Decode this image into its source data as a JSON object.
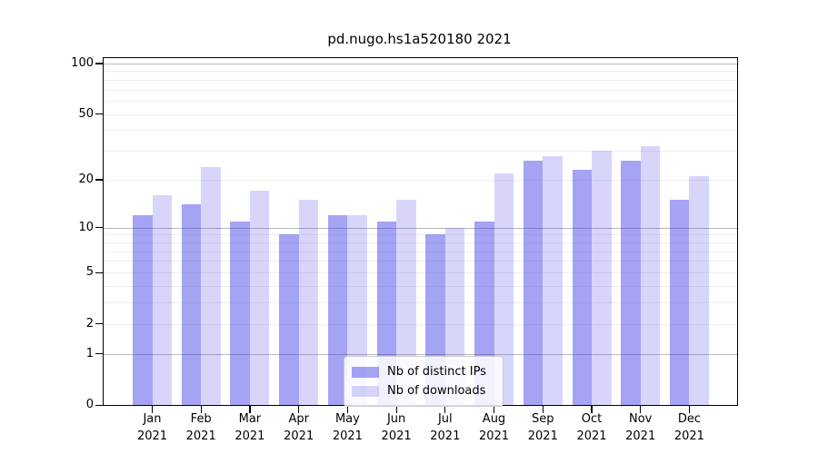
{
  "chart_data": {
    "type": "bar",
    "title": "pd.nugo.hs1a520180 2021",
    "categories": [
      "Jan 2021",
      "Feb 2021",
      "Mar 2021",
      "Apr 2021",
      "May 2021",
      "Jun 2021",
      "Jul 2021",
      "Aug 2021",
      "Sep 2021",
      "Oct 2021",
      "Nov 2021",
      "Dec 2021"
    ],
    "category_months": [
      "Jan",
      "Feb",
      "Mar",
      "Apr",
      "May",
      "Jun",
      "Jul",
      "Aug",
      "Sep",
      "Oct",
      "Nov",
      "Dec"
    ],
    "category_year": "2021",
    "series": [
      {
        "name": "Nb of distinct IPs",
        "values": [
          12,
          14,
          11,
          9,
          12,
          11,
          9,
          11,
          26,
          23,
          26,
          15
        ]
      },
      {
        "name": "Nb of downloads",
        "values": [
          16,
          24,
          17,
          15,
          12,
          15,
          10,
          22,
          28,
          30,
          32,
          21
        ]
      }
    ],
    "xlabel": "",
    "ylabel": "",
    "yscale": "log1p",
    "ylim": [
      0,
      108
    ],
    "yticks_labeled": [
      0,
      1,
      2,
      5,
      10,
      20,
      50,
      100
    ],
    "gridline_values_minor": [
      2,
      3,
      4,
      5,
      6,
      7,
      8,
      9,
      20,
      30,
      40,
      50,
      60,
      70,
      80,
      90
    ],
    "gridline_values_major": [
      1,
      10,
      100
    ],
    "grid": "horizontal",
    "legend_position": "lower-center-inside"
  },
  "colors": {
    "bar_ips": "rgba(55,51,231,0.45)",
    "bar_downloads": "rgba(55,51,231,0.20)",
    "bar_base_hex": "#3733e7",
    "grid_minor": "#eeeeee",
    "grid_major": "#b9b9b9",
    "axis": "#000000"
  }
}
